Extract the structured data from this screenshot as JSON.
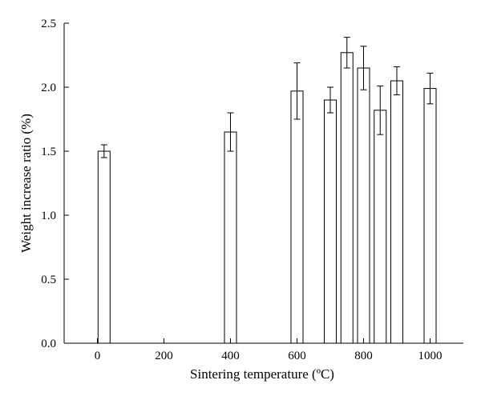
{
  "chart_data": {
    "type": "bar",
    "xlabel": "Sintering temperature (ºC)",
    "ylabel": "Weight increase ratio (%)",
    "xlim": [
      -100,
      1100
    ],
    "ylim": [
      0,
      2.5
    ],
    "xticks": [
      0,
      200,
      400,
      600,
      800,
      1000
    ],
    "xtick_labels": [
      "0",
      "200",
      "400",
      "600",
      "800",
      "1000"
    ],
    "yticks": [
      0.0,
      0.5,
      1.0,
      1.5,
      2.0,
      2.5
    ],
    "ytick_labels": [
      "0.0",
      "0.5",
      "1.0",
      "1.5",
      "2.0",
      "2.5"
    ],
    "grid": false,
    "bars": [
      {
        "x": 20,
        "value": 1.5,
        "error": 0.05
      },
      {
        "x": 400,
        "value": 1.65,
        "error": 0.15
      },
      {
        "x": 600,
        "value": 1.97,
        "error": 0.22
      },
      {
        "x": 700,
        "value": 1.9,
        "error": 0.1
      },
      {
        "x": 750,
        "value": 2.27,
        "error": 0.12
      },
      {
        "x": 800,
        "value": 2.15,
        "error": 0.17
      },
      {
        "x": 850,
        "value": 1.82,
        "error": 0.19
      },
      {
        "x": 900,
        "value": 2.05,
        "error": 0.11
      },
      {
        "x": 1000,
        "value": 1.99,
        "error": 0.12
      }
    ]
  }
}
